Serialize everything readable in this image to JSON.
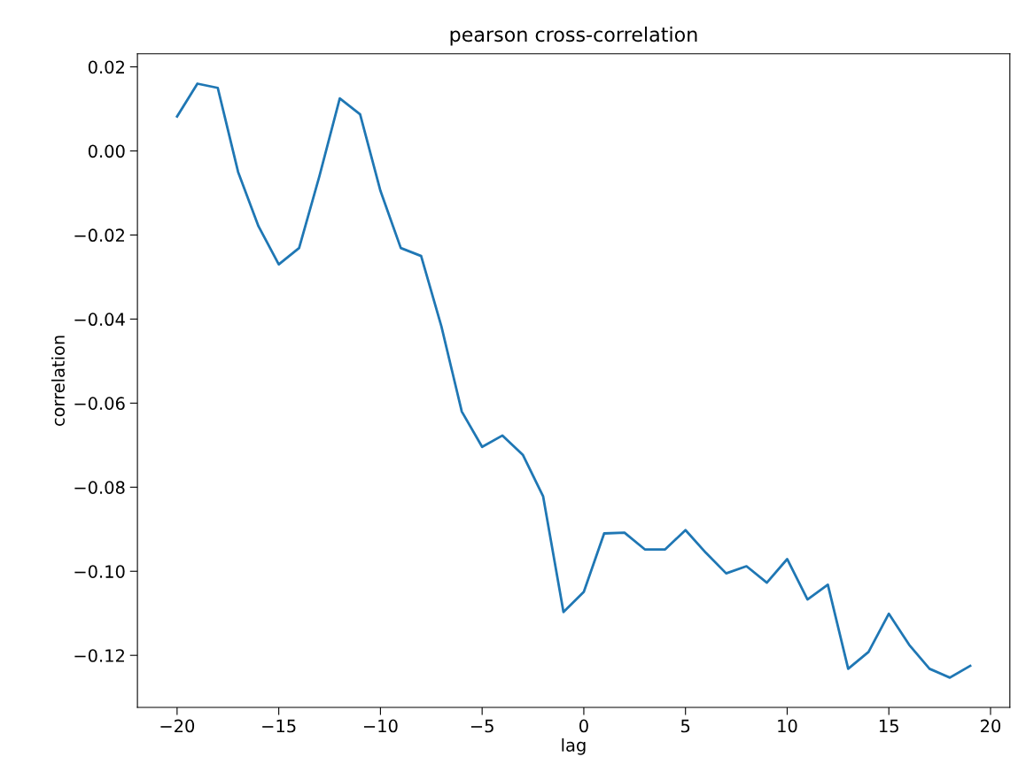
{
  "chart_data": {
    "type": "line",
    "title": "pearson cross-correlation",
    "xlabel": "lag",
    "ylabel": "correlation",
    "x": [
      -20,
      -19,
      -18,
      -17,
      -16,
      -15,
      -14,
      -13,
      -12,
      -11,
      -10,
      -9,
      -8,
      -7,
      -6,
      -5,
      -4,
      -3,
      -2,
      -1,
      0,
      1,
      2,
      3,
      4,
      5,
      6,
      7,
      8,
      9,
      10,
      11,
      12,
      13,
      14,
      15,
      16,
      17,
      18,
      19
    ],
    "series": [
      {
        "color": "#1f77b4",
        "values": [
          0.0082,
          0.016,
          0.015,
          -0.005,
          -0.0179,
          -0.027,
          -0.0231,
          -0.006,
          0.0125,
          0.0087,
          -0.0095,
          -0.0231,
          -0.025,
          -0.0418,
          -0.062,
          -0.0704,
          -0.0677,
          -0.0723,
          -0.0822,
          -0.1097,
          -0.1049,
          -0.091,
          -0.0908,
          -0.0948,
          -0.0948,
          -0.0902,
          -0.0956,
          -0.1005,
          -0.0988,
          -0.1027,
          -0.0971,
          -0.1067,
          -0.1032,
          -0.1232,
          -0.1192,
          -0.1101,
          -0.1175,
          -0.1232,
          -0.1253,
          -0.1225
        ]
      }
    ],
    "xlim": [
      -21.95,
      20.95
    ],
    "ylim": [
      -0.1324,
      0.0231
    ],
    "xticks": [
      {
        "value": -20,
        "label": "−20"
      },
      {
        "value": -15,
        "label": "−15"
      },
      {
        "value": -10,
        "label": "−10"
      },
      {
        "value": -5,
        "label": "−5"
      },
      0,
      5,
      10,
      15,
      20
    ],
    "yticks": [
      {
        "value": 0.02,
        "label": "0.02"
      },
      {
        "value": 0.0,
        "label": "0.00"
      },
      {
        "value": -0.02,
        "label": "−0.02"
      },
      {
        "value": -0.04,
        "label": "−0.04"
      },
      {
        "value": -0.06,
        "label": "−0.06"
      },
      {
        "value": -0.08,
        "label": "−0.08"
      },
      {
        "value": -0.1,
        "label": "−0.10"
      },
      {
        "value": -0.12,
        "label": "−0.12"
      }
    ],
    "grid": false,
    "legend": false
  }
}
